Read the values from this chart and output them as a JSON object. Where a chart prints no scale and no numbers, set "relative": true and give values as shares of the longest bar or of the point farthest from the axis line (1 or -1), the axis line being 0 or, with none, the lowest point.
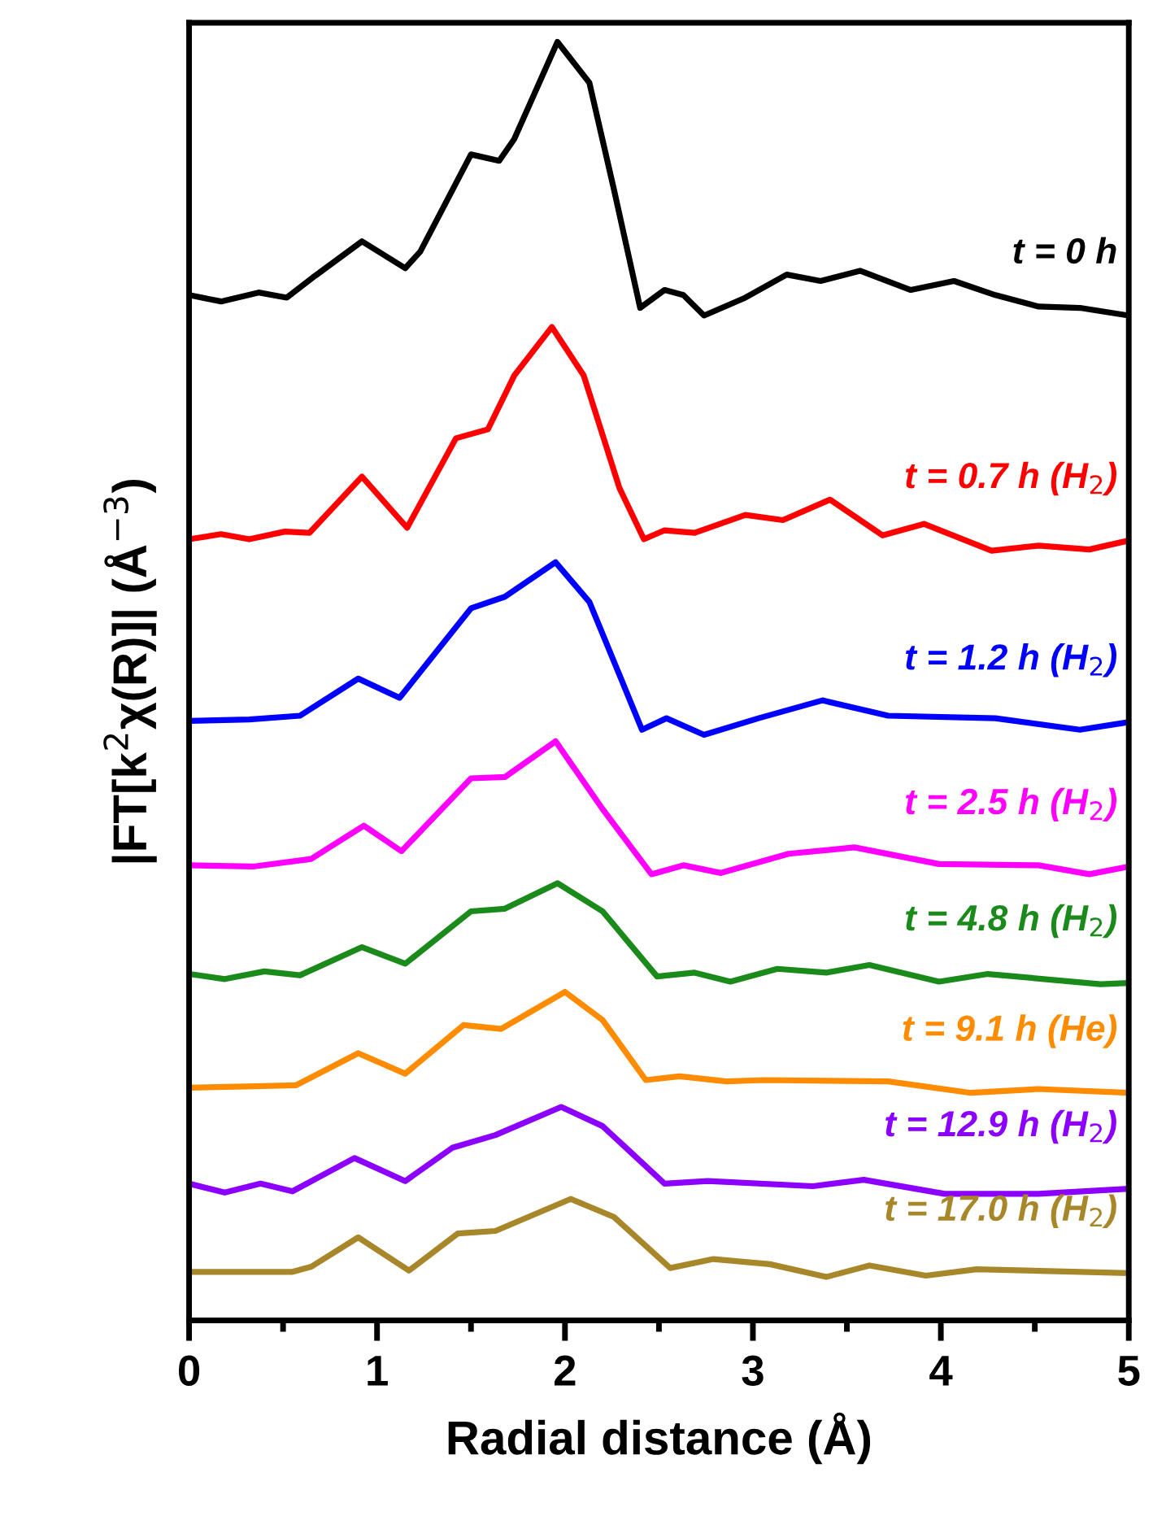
{
  "chart_data": {
    "type": "line",
    "relative": true,
    "xlabel": "Radial distance (Å)",
    "ylabel": "|FT[k$^{2}$χ(R)]| (Å$^{−3}$)",
    "xlim": [
      0,
      5
    ],
    "xticks": [
      0,
      {
        "value": 0.5,
        "label": null
      },
      1,
      {
        "value": 1.5,
        "label": null
      },
      2,
      {
        "value": 2.5,
        "label": null
      },
      3,
      {
        "value": 3.5,
        "label": null
      },
      4,
      {
        "value": 4.5,
        "label": null
      },
      5
    ],
    "tick_labels": "x",
    "grid": false,
    "legend": false,
    "marker": "none",
    "line_style": "solid",
    "series": [
      {
        "name": "t = 0 h",
        "color": "#000000",
        "x": [
          0,
          0.17,
          0.37,
          0.52,
          0.67,
          0.92,
          1.15,
          1.23,
          1.5,
          1.65,
          1.73,
          1.96,
          2.13,
          2.26,
          2.4,
          2.53,
          2.63,
          2.74,
          2.96,
          3.18,
          3.36,
          3.57,
          3.84,
          4.07,
          4.29,
          4.52,
          4.74,
          5
        ],
        "values": [
          0.802,
          0.797,
          0.804,
          0.8,
          0.817,
          0.844,
          0.823,
          0.836,
          0.912,
          0.907,
          0.924,
          1.0,
          0.968,
          0.885,
          0.792,
          0.806,
          0.802,
          0.786,
          0.8,
          0.818,
          0.813,
          0.821,
          0.806,
          0.813,
          0.802,
          0.793,
          0.792,
          0.786
        ]
      },
      {
        "name": "t = 0.7 h (H$_{2}$)",
        "color": "#ff0000",
        "x": [
          0,
          0.17,
          0.32,
          0.51,
          0.64,
          0.92,
          1.16,
          1.42,
          1.59,
          1.73,
          1.93,
          2.1,
          2.29,
          2.42,
          2.53,
          2.69,
          2.96,
          3.16,
          3.41,
          3.69,
          3.91,
          4.27,
          4.52,
          4.79,
          5
        ],
        "values": [
          0.611,
          0.615,
          0.611,
          0.617,
          0.616,
          0.66,
          0.62,
          0.69,
          0.697,
          0.739,
          0.777,
          0.739,
          0.651,
          0.611,
          0.618,
          0.616,
          0.63,
          0.626,
          0.642,
          0.614,
          0.623,
          0.602,
          0.606,
          0.603,
          0.61
        ]
      },
      {
        "name": "t = 1.2 h (H$_{2}$)",
        "color": "#0000ff",
        "x": [
          0,
          0.32,
          0.59,
          0.9,
          1.12,
          1.5,
          1.68,
          1.95,
          2.13,
          2.41,
          2.54,
          2.74,
          3.03,
          3.37,
          3.72,
          4.29,
          4.74,
          5
        ],
        "values": [
          0.469,
          0.47,
          0.473,
          0.502,
          0.487,
          0.557,
          0.566,
          0.593,
          0.562,
          0.462,
          0.471,
          0.458,
          0.471,
          0.485,
          0.473,
          0.471,
          0.462,
          0.468
        ]
      },
      {
        "name": "t = 2.5 h (H$_{2}$)",
        "color": "#ff00ff",
        "x": [
          0,
          0.34,
          0.65,
          0.93,
          1.13,
          1.5,
          1.68,
          1.95,
          2.2,
          2.46,
          2.63,
          2.83,
          3.19,
          3.54,
          3.99,
          4.52,
          4.79,
          5
        ],
        "values": [
          0.356,
          0.355,
          0.361,
          0.387,
          0.367,
          0.424,
          0.425,
          0.453,
          0.4,
          0.349,
          0.356,
          0.35,
          0.365,
          0.37,
          0.357,
          0.356,
          0.349,
          0.355
        ]
      },
      {
        "name": "t = 4.8 h (H$_{2}$)",
        "color": "#1a8a1a",
        "x": [
          0,
          0.19,
          0.4,
          0.59,
          0.92,
          1.15,
          1.5,
          1.68,
          1.96,
          2.2,
          2.49,
          2.69,
          2.88,
          3.13,
          3.39,
          3.62,
          3.99,
          4.25,
          4.85,
          5
        ],
        "values": [
          0.271,
          0.267,
          0.273,
          0.27,
          0.292,
          0.279,
          0.32,
          0.322,
          0.342,
          0.32,
          0.269,
          0.272,
          0.265,
          0.275,
          0.272,
          0.278,
          0.265,
          0.271,
          0.263,
          0.264
        ]
      },
      {
        "name": "t = 9.1 h (He)",
        "color": "#ff8c00",
        "x": [
          0,
          0.3,
          0.57,
          0.9,
          1.15,
          1.46,
          1.66,
          2.0,
          2.2,
          2.43,
          2.61,
          2.86,
          3.06,
          3.72,
          4.16,
          4.52,
          5
        ],
        "values": [
          0.182,
          0.183,
          0.184,
          0.209,
          0.193,
          0.231,
          0.228,
          0.257,
          0.235,
          0.188,
          0.191,
          0.187,
          0.188,
          0.187,
          0.178,
          0.181,
          0.178
        ]
      },
      {
        "name": "t = 12.9 h (H$_{2}$)",
        "color": "#8b00ff",
        "x": [
          0,
          0.19,
          0.38,
          0.55,
          0.88,
          1.15,
          1.4,
          1.63,
          1.98,
          2.2,
          2.53,
          2.76,
          3.32,
          3.59,
          4.02,
          4.52,
          5
        ],
        "values": [
          0.107,
          0.1,
          0.107,
          0.101,
          0.127,
          0.109,
          0.135,
          0.145,
          0.167,
          0.152,
          0.107,
          0.109,
          0.105,
          0.11,
          0.099,
          0.099,
          0.103
        ]
      },
      {
        "name": "t = 17.0 h (H$_{2}$)",
        "color": "#a8862a",
        "x": [
          0,
          0.3,
          0.55,
          0.65,
          0.9,
          1.17,
          1.43,
          1.63,
          2.03,
          2.26,
          2.56,
          2.79,
          3.09,
          3.39,
          3.62,
          3.92,
          4.19,
          5
        ],
        "values": [
          0.038,
          0.038,
          0.038,
          0.042,
          0.065,
          0.039,
          0.068,
          0.07,
          0.095,
          0.081,
          0.041,
          0.048,
          0.044,
          0.034,
          0.043,
          0.035,
          0.04,
          0.037
        ]
      }
    ]
  }
}
